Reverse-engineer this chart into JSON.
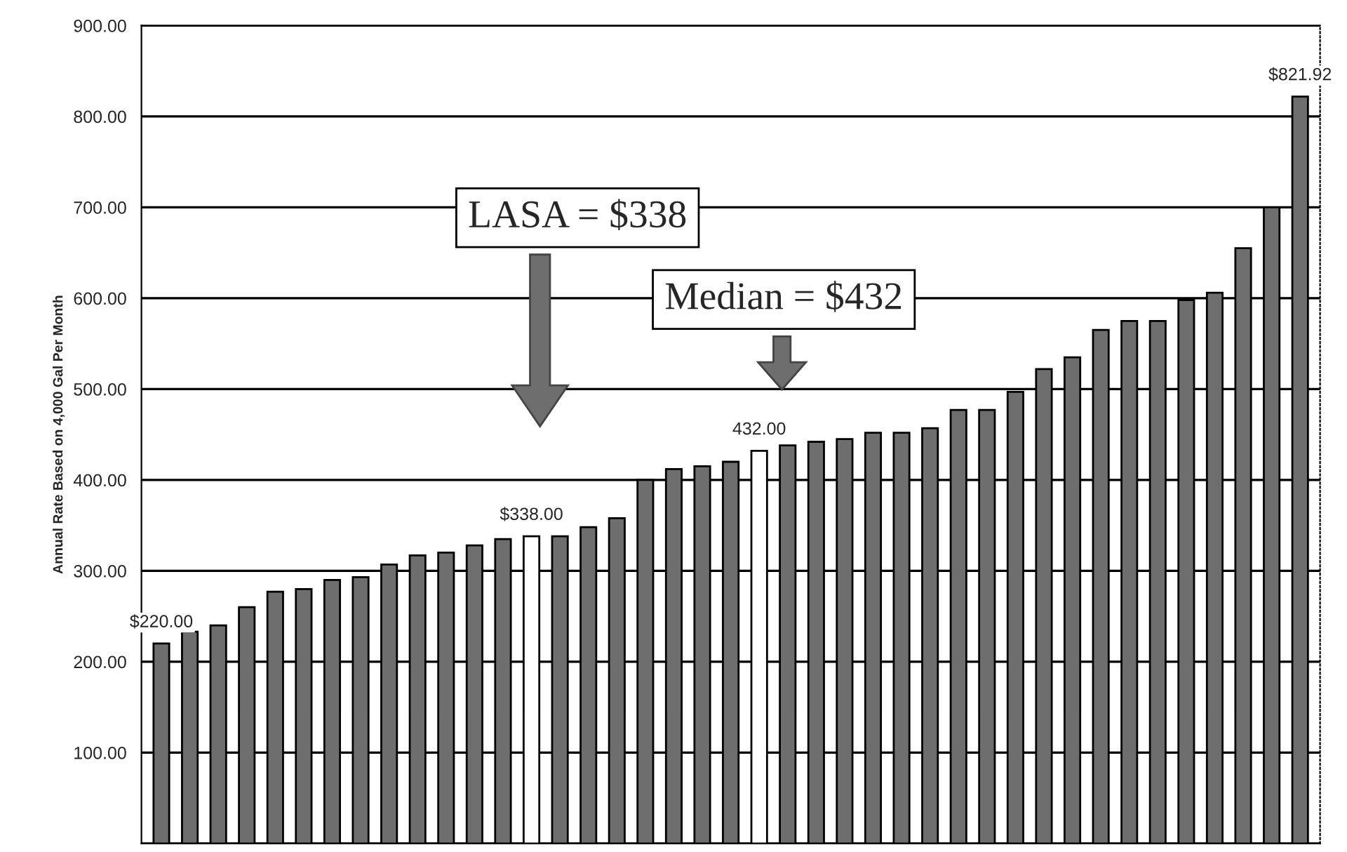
{
  "chart_data": {
    "type": "bar",
    "ylabel": "Annual Rate Based on 4,000 Gal Per Month",
    "categories": [
      null,
      null,
      null,
      null,
      null,
      null,
      null,
      null,
      null,
      null,
      null,
      null,
      null,
      null,
      null,
      null,
      null,
      null,
      null,
      null,
      null,
      null,
      null,
      null,
      null,
      null,
      null,
      null,
      null,
      null,
      null,
      null,
      null,
      null,
      null,
      null,
      null,
      null,
      null,
      null,
      null
    ],
    "values": [
      220,
      233,
      240,
      260,
      277,
      280,
      290,
      293,
      307,
      317,
      320,
      328,
      335,
      338,
      338,
      348,
      358,
      400,
      412,
      415,
      420,
      432,
      438,
      442,
      445,
      452,
      452,
      457,
      477,
      477,
      497,
      522,
      535,
      565,
      575,
      575,
      598,
      606,
      655,
      700,
      821.92
    ],
    "colors": [
      "#6e6e6e",
      "#6e6e6e",
      "#6e6e6e",
      "#6e6e6e",
      "#6e6e6e",
      "#6e6e6e",
      "#6e6e6e",
      "#6e6e6e",
      "#6e6e6e",
      "#6e6e6e",
      "#6e6e6e",
      "#6e6e6e",
      "#6e6e6e",
      "#ffffff",
      "#6e6e6e",
      "#6e6e6e",
      "#6e6e6e",
      "#6e6e6e",
      "#6e6e6e",
      "#6e6e6e",
      "#6e6e6e",
      "#ffffff",
      "#6e6e6e",
      "#6e6e6e",
      "#6e6e6e",
      "#6e6e6e",
      "#6e6e6e",
      "#6e6e6e",
      "#6e6e6e",
      "#6e6e6e",
      "#6e6e6e",
      "#6e6e6e",
      "#6e6e6e",
      "#6e6e6e",
      "#6e6e6e",
      "#6e6e6e",
      "#6e6e6e",
      "#6e6e6e",
      "#6e6e6e",
      "#6e6e6e",
      "#6e6e6e"
    ],
    "value_labels": [
      "$220.00",
      null,
      null,
      null,
      null,
      null,
      null,
      null,
      null,
      null,
      null,
      null,
      null,
      "$338.00",
      null,
      null,
      null,
      null,
      null,
      null,
      null,
      "432.00",
      null,
      null,
      null,
      null,
      null,
      null,
      null,
      null,
      null,
      null,
      null,
      null,
      null,
      null,
      null,
      null,
      null,
      null,
      "$821.92"
    ],
    "annotations": [
      "LASA = $338",
      "Median = $432"
    ],
    "ylim": [
      0,
      900
    ],
    "yticks": [
      {
        "value": 0,
        "label": null
      },
      {
        "value": 100,
        "label": "100.00"
      },
      {
        "value": 200,
        "label": "200.00"
      },
      {
        "value": 300,
        "label": "300.00"
      },
      {
        "value": 400,
        "label": "400.00"
      },
      {
        "value": 500,
        "label": "500.00"
      },
      {
        "value": 600,
        "label": "600.00"
      },
      {
        "value": 700,
        "label": "700.00"
      },
      {
        "value": 800,
        "label": "800.00"
      },
      {
        "value": 900,
        "label": "900.00"
      }
    ],
    "grid": "y",
    "legend": false
  }
}
